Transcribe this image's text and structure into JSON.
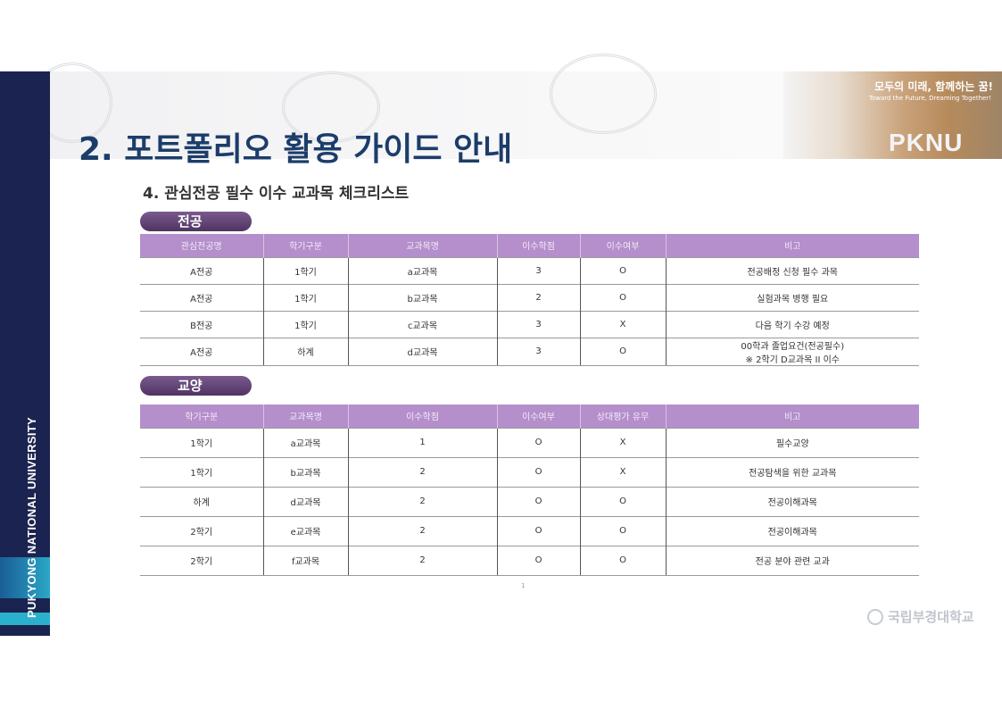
{
  "slide_title": "2. 포트폴리오 활용 가이드 안내",
  "sidebar_text": "PUKYONG NATIONAL UNIVERSITY",
  "banner": {
    "slogan_ko": "모두의 미래, 함께하는 꿈!",
    "slogan_en": "Toward the Future, Dreaming Together!",
    "brand": "PKNU"
  },
  "section_heading": "4. 관심전공 필수 이수 교과목 체크리스트",
  "major": {
    "label": "전공",
    "headers": [
      "관심전공명",
      "학기구분",
      "교과목명",
      "이수학점",
      "이수여부",
      "비고"
    ],
    "rows": [
      [
        "A전공",
        "1학기",
        "a교과목",
        "3",
        "O",
        "전공배정 신청 필수 과목"
      ],
      [
        "A전공",
        "1학기",
        "b교과목",
        "2",
        "O",
        "실험과목 병행 필요"
      ],
      [
        "B전공",
        "1학기",
        "c교과목",
        "3",
        "X",
        "다음 학기 수강 예정"
      ],
      [
        "A전공",
        "하계",
        "d교과목",
        "3",
        "O",
        "00학과 졸업요건(전공필수)\n※ 2학기 D교과목 II 이수"
      ]
    ]
  },
  "general": {
    "label": "교양",
    "headers": [
      "학기구분",
      "교과목명",
      "이수학점",
      "이수여부",
      "상대평가 유무",
      "비고"
    ],
    "rows": [
      [
        "1학기",
        "a교과목",
        "1",
        "O",
        "X",
        "필수교양"
      ],
      [
        "1학기",
        "b교과목",
        "2",
        "O",
        "X",
        "전공탐색을 위한 교과목"
      ],
      [
        "하계",
        "d교과목",
        "2",
        "O",
        "O",
        "전공이해과목"
      ],
      [
        "2학기",
        "e교과목",
        "2",
        "O",
        "O",
        "전공이해과목"
      ],
      [
        "2학기",
        "f교과목",
        "2",
        "O",
        "O",
        "전공 분야 관련 교과"
      ]
    ]
  },
  "page_number": "1",
  "footer_logo": "국립부경대학교",
  "colors": {
    "navy": "#1b2450",
    "title": "#1c3d6a",
    "table_header": "#b48fcb",
    "pill": "#5f4174"
  }
}
